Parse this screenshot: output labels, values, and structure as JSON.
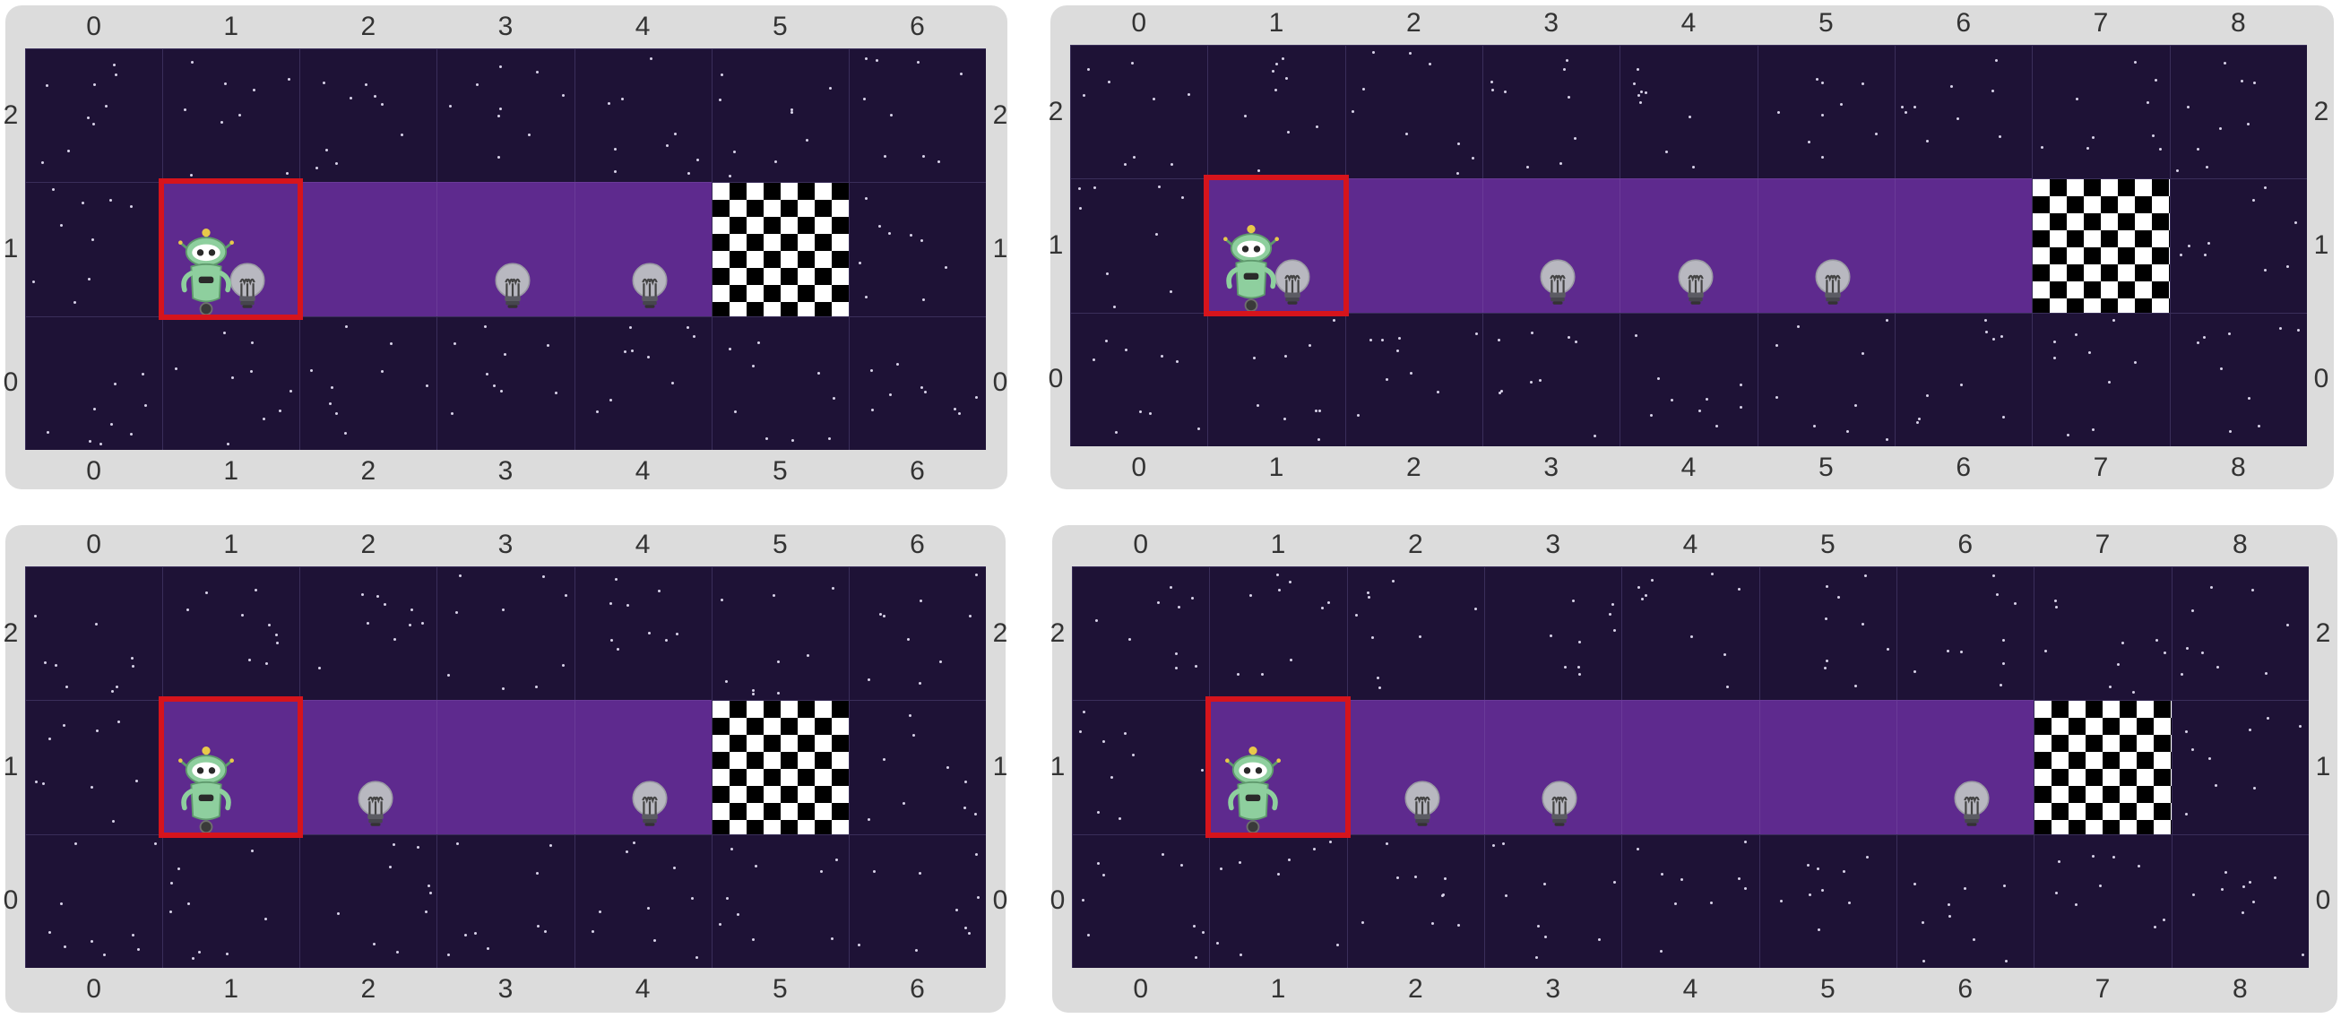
{
  "colors": {
    "panel": "#dcdcdc",
    "space": "#1e1236",
    "path": "#5e2a8e",
    "star": "#d9d4ea",
    "selection": "#d6141c",
    "bulb": "#b8b8c0",
    "robot": "#8ecf9e"
  },
  "icons": {
    "robot": "robot-icon",
    "bulb": "lightbulb-icon",
    "goal": "checkered-flag-icon"
  },
  "boards": [
    {
      "id": "top-left",
      "columns": [
        "0",
        "1",
        "2",
        "3",
        "4",
        "5",
        "6"
      ],
      "rows": [
        "2",
        "1",
        "0"
      ],
      "path": {
        "row": 1,
        "cols": [
          1,
          2,
          3,
          4
        ]
      },
      "robot": {
        "col": 1,
        "row": 1
      },
      "bulbs": [
        1,
        3,
        4
      ],
      "goal": {
        "col": 5,
        "row": 1
      },
      "selected": {
        "col": 1,
        "row": 1
      }
    },
    {
      "id": "top-right",
      "columns": [
        "0",
        "1",
        "2",
        "3",
        "4",
        "5",
        "6",
        "7",
        "8"
      ],
      "rows": [
        "2",
        "1",
        "0"
      ],
      "path": {
        "row": 1,
        "cols": [
          1,
          2,
          3,
          4,
          5,
          6
        ]
      },
      "robot": {
        "col": 1,
        "row": 1
      },
      "bulbs": [
        1,
        3,
        4,
        5
      ],
      "goal": {
        "col": 7,
        "row": 1
      },
      "selected": {
        "col": 1,
        "row": 1
      }
    },
    {
      "id": "bottom-left",
      "columns": [
        "0",
        "1",
        "2",
        "3",
        "4",
        "5",
        "6"
      ],
      "rows": [
        "2",
        "1",
        "0"
      ],
      "path": {
        "row": 1,
        "cols": [
          1,
          2,
          3,
          4
        ]
      },
      "robot": {
        "col": 1,
        "row": 1
      },
      "bulbs": [
        2,
        4
      ],
      "goal": {
        "col": 5,
        "row": 1
      },
      "selected": {
        "col": 1,
        "row": 1
      }
    },
    {
      "id": "bottom-right",
      "columns": [
        "0",
        "1",
        "2",
        "3",
        "4",
        "5",
        "6",
        "7",
        "8"
      ],
      "rows": [
        "2",
        "1",
        "0"
      ],
      "path": {
        "row": 1,
        "cols": [
          1,
          2,
          3,
          4,
          5,
          6
        ]
      },
      "robot": {
        "col": 1,
        "row": 1
      },
      "bulbs": [
        2,
        3,
        6
      ],
      "goal": {
        "col": 7,
        "row": 1
      },
      "selected": {
        "col": 1,
        "row": 1
      }
    }
  ]
}
